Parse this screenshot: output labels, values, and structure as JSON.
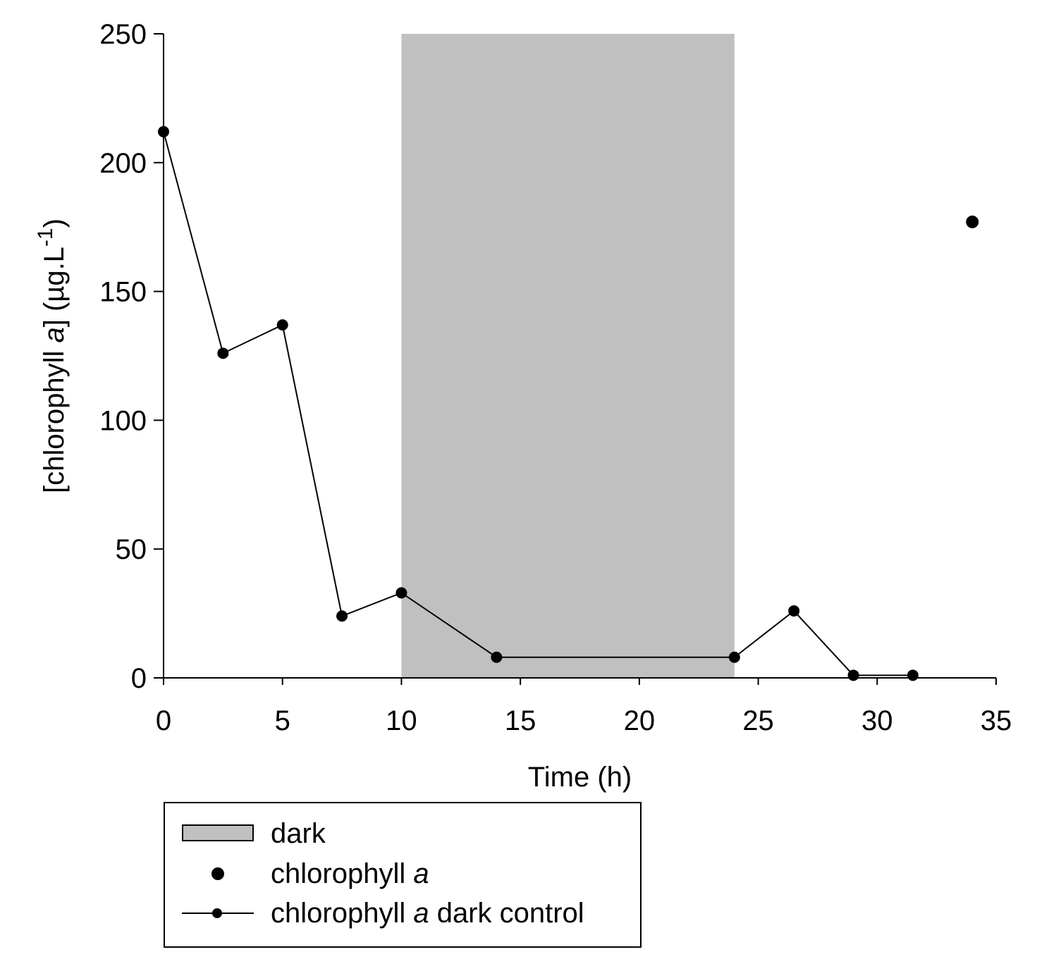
{
  "chart_data": {
    "type": "line",
    "xlabel": "Time (h)",
    "ylabel": {
      "prefix": "[chlorophyll ",
      "italic": "a",
      "middle": "] (µg.L",
      "superscript": "-1",
      "suffix": ")"
    },
    "xlim": [
      0,
      35
    ],
    "ylim": [
      0,
      250
    ],
    "x_ticks": [
      0,
      5,
      10,
      15,
      20,
      25,
      30,
      35
    ],
    "y_ticks": [
      0,
      50,
      100,
      150,
      200,
      250
    ],
    "grid": false,
    "shaded_regions": [
      {
        "name": "dark",
        "x_start": 10,
        "x_end": 24,
        "color": "#c0c0c0"
      }
    ],
    "series": [
      {
        "name": "chlorophyll a",
        "style": "markers",
        "color": "#000000",
        "points": [
          {
            "x": 34,
            "y": 177
          }
        ]
      },
      {
        "name": "chlorophyll a dark control",
        "style": "line+markers",
        "color": "#000000",
        "points": [
          {
            "x": 0,
            "y": 212
          },
          {
            "x": 2.5,
            "y": 126
          },
          {
            "x": 5,
            "y": 137
          },
          {
            "x": 7.5,
            "y": 24
          },
          {
            "x": 10,
            "y": 33
          },
          {
            "x": 14,
            "y": 8
          },
          {
            "x": 24,
            "y": 8
          },
          {
            "x": 26.5,
            "y": 26
          },
          {
            "x": 29,
            "y": 1
          },
          {
            "x": 31.5,
            "y": 1
          }
        ]
      }
    ],
    "legend": {
      "placement": "bottom",
      "entries": [
        {
          "label_parts": [
            "dark"
          ],
          "symbol": "box"
        },
        {
          "label_parts": [
            "chlorophyll ",
            "a",
            ""
          ],
          "symbol": "dot"
        },
        {
          "label_parts": [
            "chlorophyll ",
            "a",
            " dark control"
          ],
          "symbol": "line-dot"
        }
      ]
    }
  }
}
